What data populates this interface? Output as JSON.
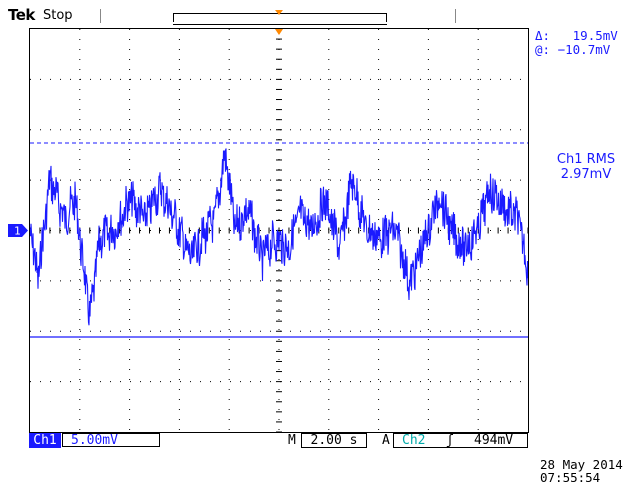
{
  "header": {
    "brand": "Tek",
    "acq_state": "Stop"
  },
  "cursors": {
    "delta_label": "Δ:",
    "delta_value": "19.5mV",
    "at_label": "@:",
    "at_value": "−10.7mV"
  },
  "measurement": {
    "label": "Ch1 RMS",
    "value": "2.97mV"
  },
  "ch1_indicator": "1",
  "status": {
    "channel": "Ch1",
    "vertical_scale": "5.00mV",
    "timebase_prefix": "M",
    "timebase": "2.00 s",
    "trigger_prefix": "A",
    "trigger_source": "Ch2",
    "trigger_slope": "ʃ",
    "trigger_level": "494mV"
  },
  "datetime": {
    "date": "28 May 2014",
    "time": "07:55:54"
  },
  "colors": {
    "trace": "#1a1aff",
    "trigger_marker": "#ff8800",
    "trigger_source": "#00aaaa",
    "graticule_dots": "#000000"
  }
}
